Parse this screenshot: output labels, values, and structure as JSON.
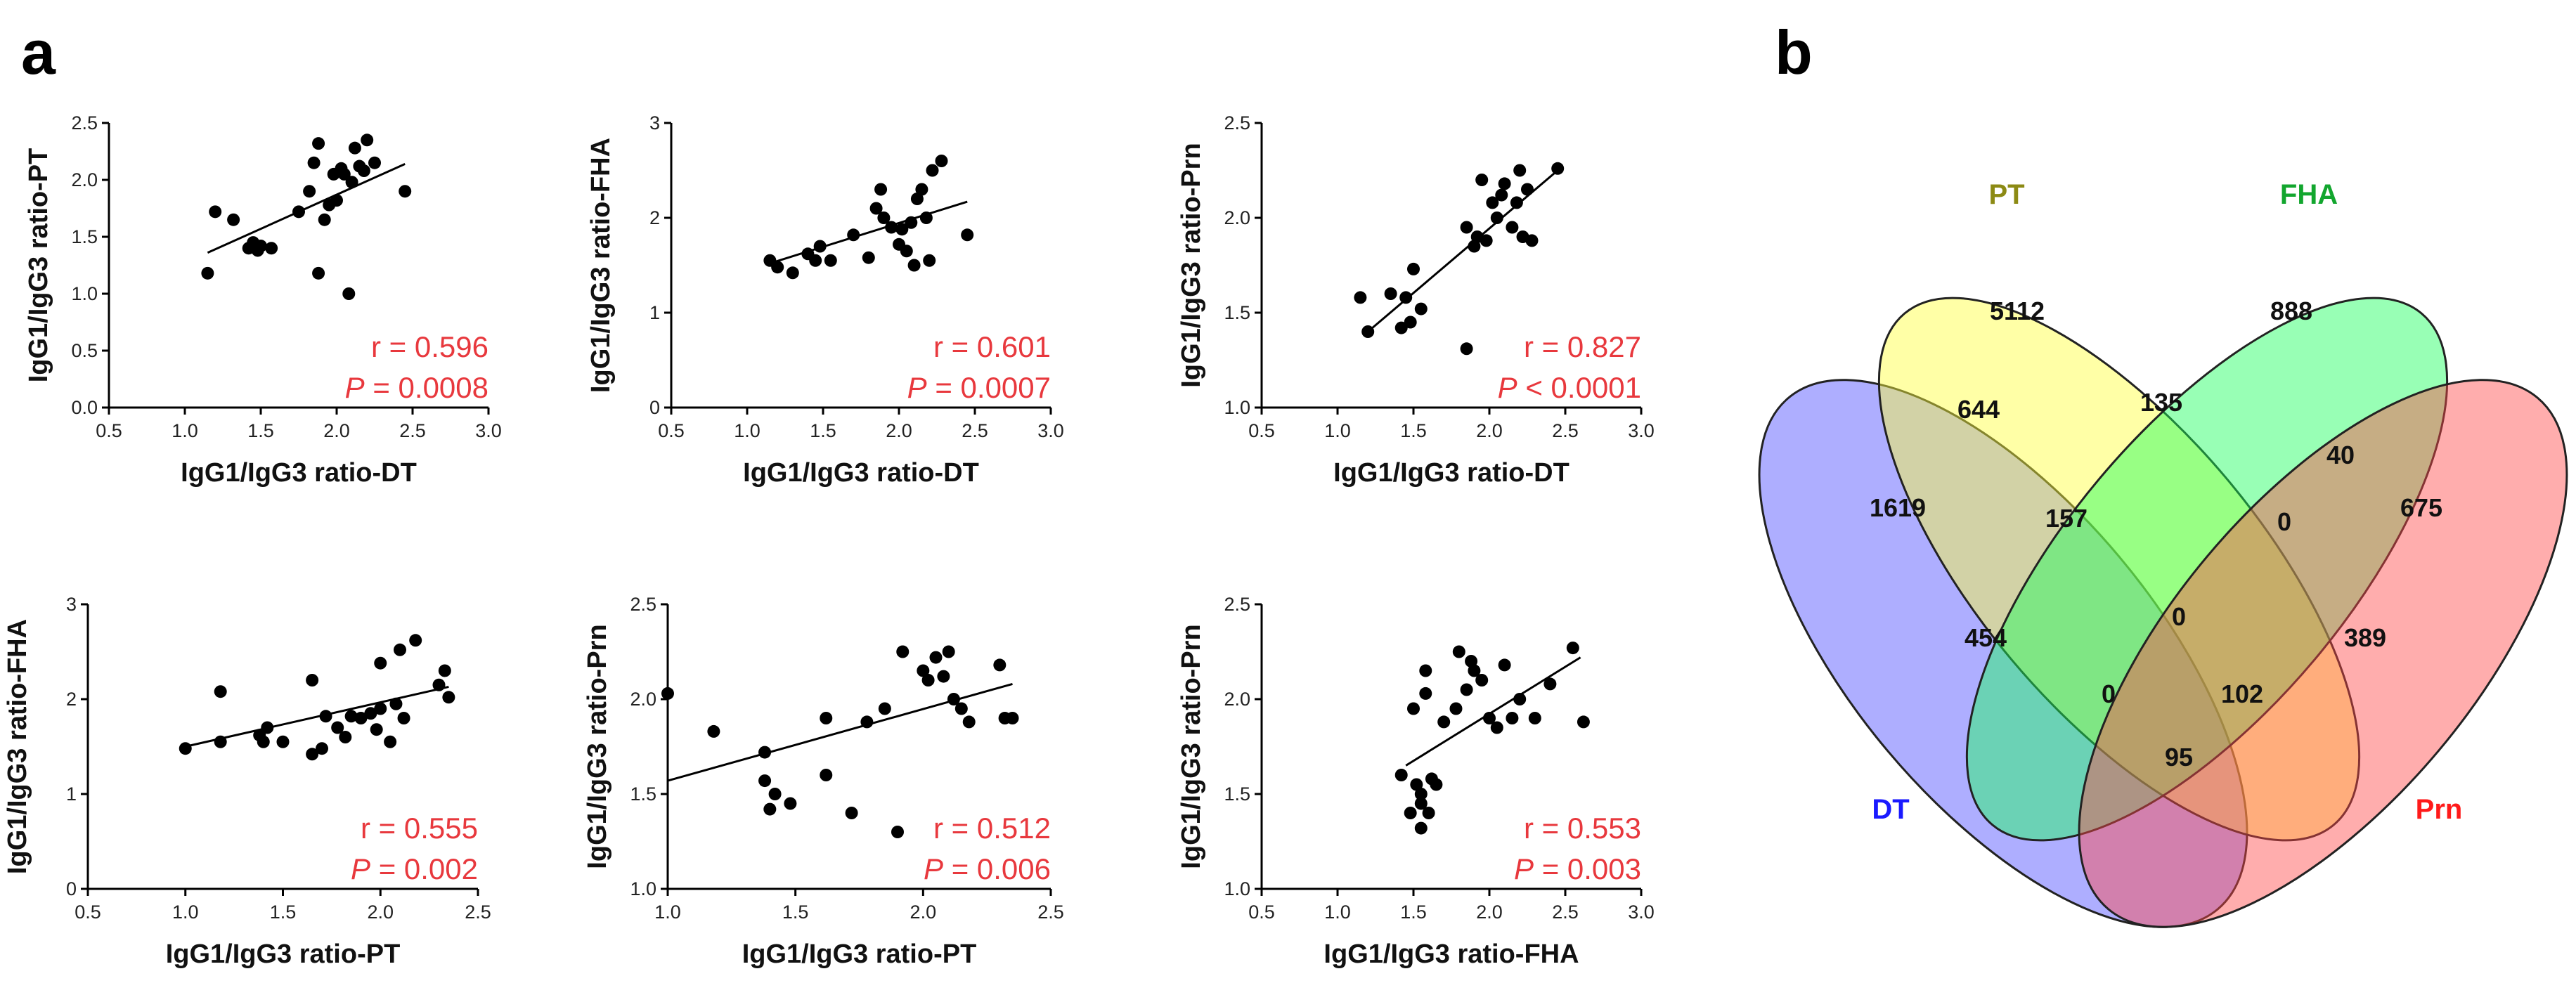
{
  "panels": {
    "a_label": "a",
    "b_label": "b"
  },
  "chart_data": [
    {
      "type": "scatter",
      "xlabel": "IgG1/IgG3 ratio-DT",
      "ylabel": "IgG1/IgG3 ratio-PT",
      "xlim": [
        0.5,
        3.0
      ],
      "ylim": [
        0.0,
        2.5
      ],
      "xticks": [
        "0.5",
        "1.0",
        "1.5",
        "2.0",
        "2.5",
        "3.0"
      ],
      "yticks": [
        "0.0",
        "0.5",
        "1.0",
        "1.5",
        "2.0",
        "2.5"
      ],
      "r_text": "r = 0.596",
      "p_sym": "P",
      "p_rest": " = 0.0008",
      "trend": [
        [
          1.15,
          1.36
        ],
        [
          2.45,
          2.14
        ]
      ],
      "points": [
        [
          1.15,
          1.18
        ],
        [
          1.2,
          1.72
        ],
        [
          1.32,
          1.65
        ],
        [
          1.42,
          1.4
        ],
        [
          1.45,
          1.45
        ],
        [
          1.48,
          1.38
        ],
        [
          1.5,
          1.42
        ],
        [
          1.57,
          1.4
        ],
        [
          1.75,
          1.72
        ],
        [
          1.82,
          1.9
        ],
        [
          1.85,
          2.15
        ],
        [
          1.88,
          2.32
        ],
        [
          1.88,
          1.18
        ],
        [
          1.92,
          1.65
        ],
        [
          1.95,
          1.78
        ],
        [
          1.98,
          2.05
        ],
        [
          2.0,
          1.82
        ],
        [
          2.03,
          2.1
        ],
        [
          2.05,
          2.05
        ],
        [
          2.08,
          1.0
        ],
        [
          2.1,
          1.98
        ],
        [
          2.12,
          2.28
        ],
        [
          2.15,
          2.12
        ],
        [
          2.18,
          2.08
        ],
        [
          2.2,
          2.35
        ],
        [
          2.25,
          2.15
        ],
        [
          2.45,
          1.9
        ]
      ]
    },
    {
      "type": "scatter",
      "xlabel": "IgG1/IgG3 ratio-DT",
      "ylabel": "IgG1/IgG3 ratio-FHA",
      "xlim": [
        0.5,
        3.0
      ],
      "ylim": [
        0,
        3
      ],
      "xticks": [
        "0.5",
        "1.0",
        "1.5",
        "2.0",
        "2.5",
        "3.0"
      ],
      "yticks": [
        "0",
        "1",
        "2",
        "3"
      ],
      "r_text": "r = 0.601",
      "p_sym": "P",
      "p_rest": " = 0.0007",
      "trend": [
        [
          1.15,
          1.52
        ],
        [
          2.45,
          2.17
        ]
      ],
      "points": [
        [
          1.15,
          1.55
        ],
        [
          1.2,
          1.48
        ],
        [
          1.3,
          1.42
        ],
        [
          1.4,
          1.62
        ],
        [
          1.45,
          1.55
        ],
        [
          1.48,
          1.7
        ],
        [
          1.55,
          1.55
        ],
        [
          1.7,
          1.82
        ],
        [
          1.8,
          1.58
        ],
        [
          1.85,
          2.1
        ],
        [
          1.88,
          2.3
        ],
        [
          1.9,
          2.0
        ],
        [
          1.95,
          1.9
        ],
        [
          2.0,
          1.72
        ],
        [
          2.02,
          1.88
        ],
        [
          2.05,
          1.65
        ],
        [
          2.08,
          1.95
        ],
        [
          2.1,
          1.5
        ],
        [
          2.12,
          2.2
        ],
        [
          2.15,
          2.3
        ],
        [
          2.18,
          2.0
        ],
        [
          2.2,
          1.55
        ],
        [
          2.22,
          2.5
        ],
        [
          2.28,
          2.6
        ],
        [
          2.45,
          1.82
        ]
      ]
    },
    {
      "type": "scatter",
      "xlabel": "IgG1/IgG3 ratio-DT",
      "ylabel": "IgG1/IgG3 ratio-Prn",
      "xlim": [
        0.5,
        3.0
      ],
      "ylim": [
        1.0,
        2.5
      ],
      "xticks": [
        "0.5",
        "1.0",
        "1.5",
        "2.0",
        "2.5",
        "3.0"
      ],
      "yticks": [
        "1.0",
        "1.5",
        "2.0",
        "2.5"
      ],
      "r_text": "r = 0.827",
      "p_sym": "P",
      "p_rest": " < 0.0001",
      "trend": [
        [
          1.2,
          1.4
        ],
        [
          2.45,
          2.25
        ]
      ],
      "points": [
        [
          1.15,
          1.58
        ],
        [
          1.2,
          1.4
        ],
        [
          1.35,
          1.6
        ],
        [
          1.42,
          1.42
        ],
        [
          1.45,
          1.58
        ],
        [
          1.48,
          1.45
        ],
        [
          1.5,
          1.73
        ],
        [
          1.55,
          1.52
        ],
        [
          1.85,
          1.31
        ],
        [
          1.85,
          1.95
        ],
        [
          1.9,
          1.85
        ],
        [
          1.92,
          1.9
        ],
        [
          1.95,
          2.2
        ],
        [
          1.98,
          1.88
        ],
        [
          2.02,
          2.08
        ],
        [
          2.05,
          2.0
        ],
        [
          2.08,
          2.12
        ],
        [
          2.1,
          2.18
        ],
        [
          2.15,
          1.95
        ],
        [
          2.18,
          2.08
        ],
        [
          2.2,
          2.25
        ],
        [
          2.22,
          1.9
        ],
        [
          2.25,
          2.15
        ],
        [
          2.28,
          1.88
        ],
        [
          2.45,
          2.26
        ]
      ]
    },
    {
      "type": "scatter",
      "xlabel": "IgG1/IgG3 ratio-PT",
      "ylabel": "IgG1/IgG3 ratio-FHA",
      "xlim": [
        0.5,
        2.5
      ],
      "ylim": [
        0,
        3
      ],
      "xticks": [
        "0.5",
        "1.0",
        "1.5",
        "2.0",
        "2.5"
      ],
      "yticks": [
        "0",
        "1",
        "2",
        "3"
      ],
      "r_text": "r = 0.555",
      "p_sym": "P",
      "p_rest": " = 0.002",
      "trend": [
        [
          1.0,
          1.5
        ],
        [
          2.35,
          2.13
        ]
      ],
      "points": [
        [
          1.0,
          1.48
        ],
        [
          1.18,
          1.55
        ],
        [
          1.18,
          2.08
        ],
        [
          1.38,
          1.62
        ],
        [
          1.4,
          1.55
        ],
        [
          1.42,
          1.7
        ],
        [
          1.5,
          1.55
        ],
        [
          1.65,
          1.42
        ],
        [
          1.65,
          2.2
        ],
        [
          1.7,
          1.48
        ],
        [
          1.72,
          1.82
        ],
        [
          1.78,
          1.7
        ],
        [
          1.82,
          1.6
        ],
        [
          1.85,
          1.82
        ],
        [
          1.9,
          1.8
        ],
        [
          1.95,
          1.85
        ],
        [
          1.98,
          1.68
        ],
        [
          2.0,
          2.38
        ],
        [
          2.0,
          1.9
        ],
        [
          2.05,
          1.55
        ],
        [
          2.08,
          1.95
        ],
        [
          2.1,
          2.52
        ],
        [
          2.12,
          1.8
        ],
        [
          2.18,
          2.62
        ],
        [
          2.3,
          2.15
        ],
        [
          2.33,
          2.3
        ],
        [
          2.35,
          2.02
        ]
      ]
    },
    {
      "type": "scatter",
      "xlabel": "IgG1/IgG3 ratio-PT",
      "ylabel": "IgG1/IgG3 ratio-Prn",
      "xlim": [
        1.0,
        2.5
      ],
      "ylim": [
        1.0,
        2.5
      ],
      "xticks": [
        "1.0",
        "1.5",
        "2.0",
        "2.5"
      ],
      "yticks": [
        "1.0",
        "1.5",
        "2.0",
        "2.5"
      ],
      "r_text": "r = 0.512",
      "p_sym": "P",
      "p_rest": " = 0.006",
      "trend": [
        [
          1.0,
          1.57
        ],
        [
          2.35,
          2.08
        ]
      ],
      "points": [
        [
          1.0,
          2.03
        ],
        [
          1.18,
          1.83
        ],
        [
          1.38,
          1.72
        ],
        [
          1.38,
          1.57
        ],
        [
          1.4,
          1.42
        ],
        [
          1.42,
          1.5
        ],
        [
          1.48,
          1.45
        ],
        [
          1.62,
          1.6
        ],
        [
          1.62,
          1.9
        ],
        [
          1.72,
          1.4
        ],
        [
          1.78,
          1.88
        ],
        [
          1.85,
          1.95
        ],
        [
          1.9,
          1.3
        ],
        [
          1.92,
          2.25
        ],
        [
          2.0,
          2.15
        ],
        [
          2.02,
          2.1
        ],
        [
          2.05,
          2.22
        ],
        [
          2.08,
          2.12
        ],
        [
          2.1,
          2.25
        ],
        [
          2.12,
          2.0
        ],
        [
          2.15,
          1.95
        ],
        [
          2.18,
          1.88
        ],
        [
          2.3,
          2.18
        ],
        [
          2.32,
          1.9
        ],
        [
          2.35,
          1.9
        ]
      ]
    },
    {
      "type": "scatter",
      "xlabel": "IgG1/IgG3 ratio-FHA",
      "ylabel": "IgG1/IgG3 ratio-Prn",
      "xlim": [
        0.5,
        3.0
      ],
      "ylim": [
        1.0,
        2.5
      ],
      "xticks": [
        "0.5",
        "1.0",
        "1.5",
        "2.0",
        "2.5",
        "3.0"
      ],
      "yticks": [
        "1.0",
        "1.5",
        "2.0",
        "2.5"
      ],
      "r_text": "r = 0.553",
      "p_sym": "P",
      "p_rest": " = 0.003",
      "trend": [
        [
          1.45,
          1.65
        ],
        [
          2.6,
          2.22
        ]
      ],
      "points": [
        [
          1.42,
          1.6
        ],
        [
          1.48,
          1.4
        ],
        [
          1.5,
          1.95
        ],
        [
          1.52,
          1.55
        ],
        [
          1.55,
          1.45
        ],
        [
          1.55,
          1.5
        ],
        [
          1.55,
          1.32
        ],
        [
          1.58,
          2.03
        ],
        [
          1.58,
          2.15
        ],
        [
          1.6,
          1.4
        ],
        [
          1.62,
          1.58
        ],
        [
          1.65,
          1.55
        ],
        [
          1.7,
          1.88
        ],
        [
          1.78,
          1.95
        ],
        [
          1.8,
          2.25
        ],
        [
          1.85,
          2.05
        ],
        [
          1.88,
          2.2
        ],
        [
          1.9,
          2.15
        ],
        [
          1.95,
          2.1
        ],
        [
          2.0,
          1.9
        ],
        [
          2.05,
          1.85
        ],
        [
          2.1,
          2.18
        ],
        [
          2.15,
          1.9
        ],
        [
          2.2,
          2.0
        ],
        [
          2.3,
          1.9
        ],
        [
          2.4,
          2.08
        ],
        [
          2.55,
          2.27
        ],
        [
          2.62,
          1.88
        ]
      ]
    },
    {
      "type": "venn",
      "sets": [
        {
          "name": "DT",
          "color": "#1a1aff"
        },
        {
          "name": "PT",
          "color": "#8c8a14"
        },
        {
          "name": "FHA",
          "color": "#12a62e"
        },
        {
          "name": "Prn",
          "color": "#ff1a1a"
        }
      ],
      "regions": {
        "PT_only": "5112",
        "FHA_only": "888",
        "DT_only": "1619",
        "Prn_only": "675",
        "DT_PT": "644",
        "PT_FHA": "135",
        "FHA_Prn": "40",
        "DT_PT_FHA": "157",
        "PT_FHA_Prn": "0",
        "all": "0",
        "DT_FHA": "454",
        "PT_Prn": "389",
        "DT_PT_Prn": "0",
        "DT_FHA_Prn": "102",
        "DT_Prn": "95"
      }
    }
  ]
}
